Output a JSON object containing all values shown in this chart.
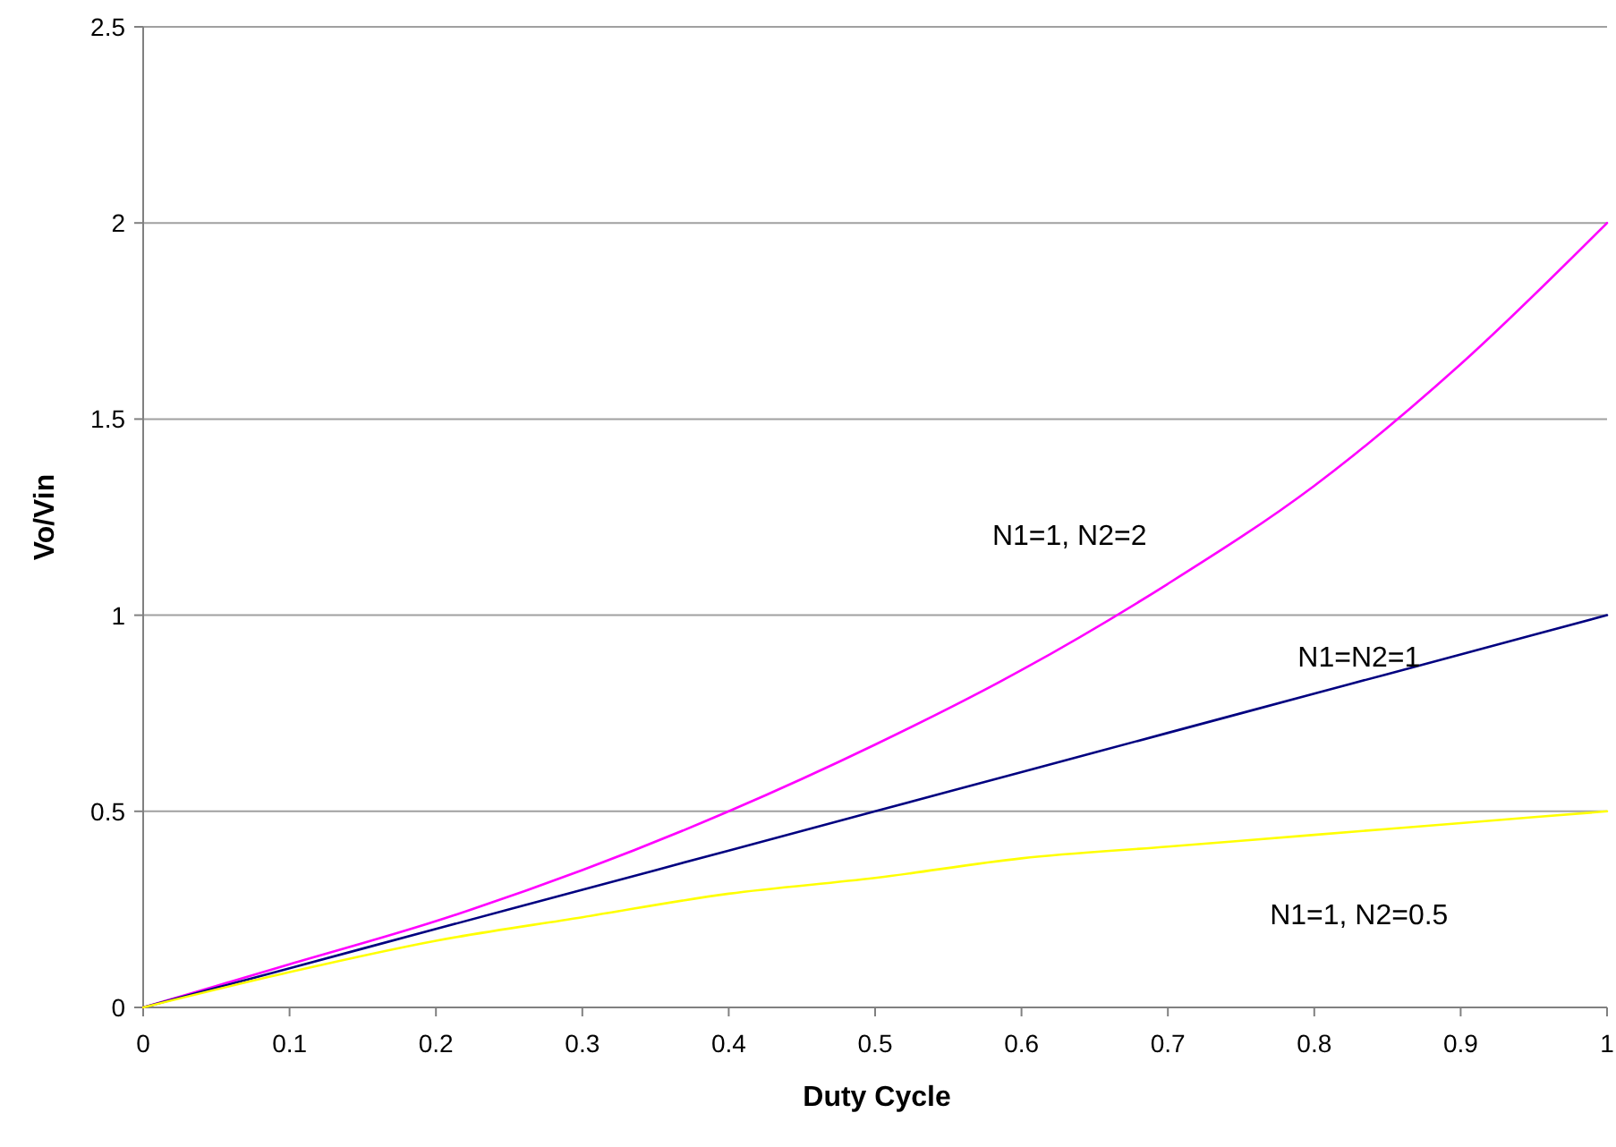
{
  "chart_data": {
    "type": "line",
    "xlabel": "Duty Cycle",
    "ylabel": "Vo/Vin",
    "x": [
      0,
      0.1,
      0.2,
      0.3,
      0.4,
      0.5,
      0.6,
      0.7,
      0.8,
      0.9,
      1
    ],
    "series": [
      {
        "name": "N1=1, N2=2",
        "color": "#ff00ff",
        "values": [
          0,
          0.11,
          0.22,
          0.35,
          0.5,
          0.67,
          0.86,
          1.08,
          1.33,
          1.64,
          2
        ]
      },
      {
        "name": "N1=N2=1",
        "color": "#000080",
        "values": [
          0,
          0.1,
          0.2,
          0.3,
          0.4,
          0.5,
          0.6,
          0.7,
          0.8,
          0.9,
          1
        ]
      },
      {
        "name": "N1=1, N2=0.5",
        "color": "#ffff00",
        "values": [
          0,
          0.09,
          0.17,
          0.23,
          0.29,
          0.33,
          0.38,
          0.41,
          0.44,
          0.47,
          0.5
        ]
      }
    ],
    "xlim": [
      0,
      1
    ],
    "xticks": [
      0,
      0.1,
      0.2,
      0.3,
      0.4,
      0.5,
      0.6,
      0.7,
      0.8,
      0.9,
      1
    ],
    "ylim": [
      0,
      2.5
    ],
    "yticks": [
      0,
      0.5,
      1,
      1.5,
      2,
      2.5
    ],
    "grid": "y",
    "legend": false,
    "marker": "none",
    "line_style": "solid"
  }
}
